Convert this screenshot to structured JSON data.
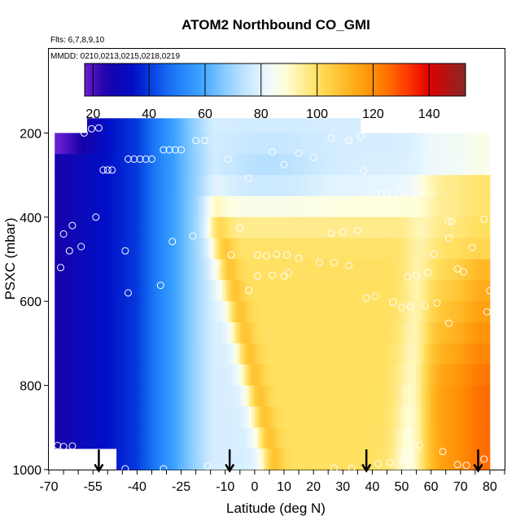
{
  "chart_data": {
    "type": "heatmap",
    "title": "ATOM2 Northbound CO_GMI",
    "subtitle_flights": "Flts: 6,7,8,9,10",
    "subtitle_dates": "MMDD: 0210,0213,0215,0218,0219",
    "xlabel": "Latitude (deg N)",
    "ylabel": "PSXC (mbar)",
    "xlim": [
      -70,
      85
    ],
    "ylim": [
      1000,
      0
    ],
    "x_tick_labels": [
      "-70",
      "-55",
      "-40",
      "-25",
      "-10",
      "0",
      "10",
      "20",
      "30",
      "40",
      "50",
      "60",
      "70",
      "80"
    ],
    "x_tick_values": [
      -70,
      -55,
      -40,
      -25,
      -10,
      0,
      10,
      20,
      30,
      40,
      50,
      60,
      70,
      80
    ],
    "y_tick_labels": [
      "200",
      "400",
      "600",
      "800",
      "1000"
    ],
    "y_tick_values": [
      200,
      400,
      600,
      800,
      1000
    ],
    "colorbar": {
      "min": 17,
      "max": 153,
      "tick_labels": [
        "20",
        "40",
        "60",
        "80",
        "100",
        "120",
        "140"
      ],
      "tick_values": [
        20,
        40,
        60,
        80,
        100,
        120,
        140
      ]
    },
    "colormap": [
      {
        "v": 17,
        "c": "#6a1fd0"
      },
      {
        "v": 25,
        "c": "#1a00a8"
      },
      {
        "v": 35,
        "c": "#0010c8"
      },
      {
        "v": 42,
        "c": "#0a4ae6"
      },
      {
        "v": 50,
        "c": "#1f7ff8"
      },
      {
        "v": 58,
        "c": "#3aa0ff"
      },
      {
        "v": 66,
        "c": "#7fc8ff"
      },
      {
        "v": 74,
        "c": "#bfe4ff"
      },
      {
        "v": 82,
        "c": "#ecf8ff"
      },
      {
        "v": 88,
        "c": "#ffffe0"
      },
      {
        "v": 94,
        "c": "#fff0a0"
      },
      {
        "v": 100,
        "c": "#ffe060"
      },
      {
        "v": 108,
        "c": "#ffc230"
      },
      {
        "v": 116,
        "c": "#ffa010"
      },
      {
        "v": 124,
        "c": "#ff7a00"
      },
      {
        "v": 132,
        "c": "#ff3a00"
      },
      {
        "v": 140,
        "c": "#e00000"
      },
      {
        "v": 148,
        "c": "#a81818"
      },
      {
        "v": 153,
        "c": "#882828"
      }
    ],
    "pressure_levels": [
      175,
      225,
      275,
      325,
      375,
      425,
      475,
      525,
      575,
      625,
      675,
      725,
      775,
      825,
      875,
      925,
      975
    ],
    "row_bands": [
      {
        "p": [
          165,
          210
        ],
        "lat": [
          -57,
          36
        ]
      },
      {
        "p": [
          210,
          1000
        ],
        "lat": [
          -68,
          80
        ]
      }
    ],
    "missing_regions": [
      {
        "p": [
          955,
          1000
        ],
        "lat": [
          -68,
          -47
        ]
      }
    ],
    "sample_points": [
      {
        "lat": -58,
        "p": 200
      },
      {
        "lat": -55.5,
        "p": 190
      },
      {
        "lat": -53,
        "p": 188
      },
      {
        "lat": -43,
        "p": 262
      },
      {
        "lat": -41,
        "p": 262
      },
      {
        "lat": -39,
        "p": 262
      },
      {
        "lat": -37,
        "p": 262
      },
      {
        "lat": -35,
        "p": 262
      },
      {
        "lat": -31,
        "p": 240
      },
      {
        "lat": -29,
        "p": 240
      },
      {
        "lat": -27,
        "p": 240
      },
      {
        "lat": -25,
        "p": 240
      },
      {
        "lat": -20,
        "p": 218
      },
      {
        "lat": -17,
        "p": 218
      },
      {
        "lat": -9,
        "p": 262
      },
      {
        "lat": 6,
        "p": 245
      },
      {
        "lat": 10,
        "p": 275
      },
      {
        "lat": 15,
        "p": 248
      },
      {
        "lat": 20,
        "p": 258
      },
      {
        "lat": 26,
        "p": 212
      },
      {
        "lat": 32,
        "p": 218
      },
      {
        "lat": 36,
        "p": 208
      },
      {
        "lat": -51.5,
        "p": 288
      },
      {
        "lat": -50,
        "p": 288
      },
      {
        "lat": -48.5,
        "p": 288
      },
      {
        "lat": -2,
        "p": 308
      },
      {
        "lat": 37,
        "p": 290
      },
      {
        "lat": 43,
        "p": 345
      },
      {
        "lat": 45,
        "p": 345
      },
      {
        "lat": 49,
        "p": 345
      },
      {
        "lat": 55,
        "p": 345
      },
      {
        "lat": 60,
        "p": 345
      },
      {
        "lat": 69,
        "p": 268
      },
      {
        "lat": 79.5,
        "p": 288
      },
      {
        "lat": 80,
        "p": 288
      },
      {
        "lat": -62,
        "p": 420
      },
      {
        "lat": -65,
        "p": 440
      },
      {
        "lat": -54,
        "p": 400
      },
      {
        "lat": -59,
        "p": 470
      },
      {
        "lat": -63,
        "p": 480
      },
      {
        "lat": -66,
        "p": 520
      },
      {
        "lat": -44,
        "p": 480
      },
      {
        "lat": -28,
        "p": 458
      },
      {
        "lat": -21,
        "p": 445
      },
      {
        "lat": -5,
        "p": 425
      },
      {
        "lat": -8,
        "p": 490
      },
      {
        "lat": 1,
        "p": 490
      },
      {
        "lat": 4,
        "p": 492
      },
      {
        "lat": 7.5,
        "p": 488
      },
      {
        "lat": 11,
        "p": 490
      },
      {
        "lat": 15,
        "p": 498
      },
      {
        "lat": 22,
        "p": 508
      },
      {
        "lat": 26,
        "p": 438
      },
      {
        "lat": 30,
        "p": 436
      },
      {
        "lat": 35,
        "p": 432
      },
      {
        "lat": 39,
        "p": 384
      },
      {
        "lat": 66,
        "p": 410
      },
      {
        "lat": 67,
        "p": 410
      },
      {
        "lat": 78,
        "p": 405
      },
      {
        "lat": -13,
        "p": 512
      },
      {
        "lat": 27,
        "p": 508
      },
      {
        "lat": 32,
        "p": 515
      },
      {
        "lat": 10,
        "p": 540
      },
      {
        "lat": 1,
        "p": 540
      },
      {
        "lat": 6,
        "p": 538
      },
      {
        "lat": 11.5,
        "p": 532
      },
      {
        "lat": 69,
        "p": 523
      },
      {
        "lat": 71,
        "p": 530
      },
      {
        "lat": 59,
        "p": 532
      },
      {
        "lat": 55,
        "p": 538
      },
      {
        "lat": 52,
        "p": 542
      },
      {
        "lat": 61,
        "p": 488
      },
      {
        "lat": 66,
        "p": 450
      },
      {
        "lat": 74,
        "p": 472
      },
      {
        "lat": 80,
        "p": 575
      },
      {
        "lat": -32,
        "p": 562
      },
      {
        "lat": -43,
        "p": 580
      },
      {
        "lat": -2,
        "p": 574
      },
      {
        "lat": 38,
        "p": 592
      },
      {
        "lat": 41,
        "p": 588
      },
      {
        "lat": 47,
        "p": 602
      },
      {
        "lat": 50,
        "p": 615
      },
      {
        "lat": 53,
        "p": 613
      },
      {
        "lat": 58,
        "p": 610
      },
      {
        "lat": 62,
        "p": 604
      },
      {
        "lat": 66,
        "p": 652
      },
      {
        "lat": 79,
        "p": 625
      },
      {
        "lat": -67,
        "p": 943
      },
      {
        "lat": -65,
        "p": 945
      },
      {
        "lat": -62,
        "p": 944
      },
      {
        "lat": -44,
        "p": 998
      },
      {
        "lat": -31,
        "p": 998
      },
      {
        "lat": -16,
        "p": 992
      },
      {
        "lat": -9,
        "p": 990
      },
      {
        "lat": 2,
        "p": 992
      },
      {
        "lat": 27,
        "p": 997
      },
      {
        "lat": 33,
        "p": 997
      },
      {
        "lat": 42,
        "p": 986
      },
      {
        "lat": 46,
        "p": 983
      },
      {
        "lat": 51,
        "p": 972
      },
      {
        "lat": 56,
        "p": 942
      },
      {
        "lat": 64,
        "p": 957
      },
      {
        "lat": 69,
        "p": 988
      },
      {
        "lat": 72,
        "p": 990
      },
      {
        "lat": 78,
        "p": 975
      }
    ],
    "arrows_lat": [
      -53,
      -8.5,
      38,
      76
    ],
    "grid": false,
    "legend": "colorbar-top"
  }
}
